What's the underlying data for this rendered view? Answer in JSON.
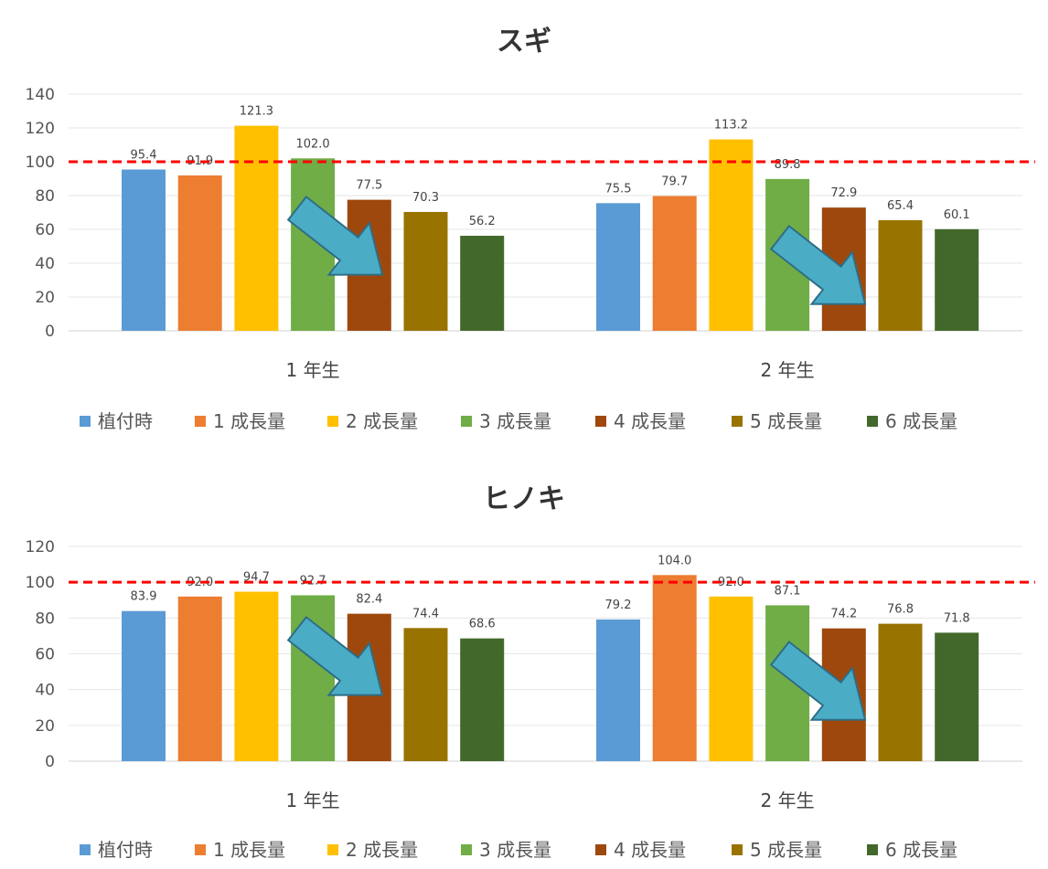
{
  "legend": [
    "植付時",
    "1 成長量",
    "2 成長量",
    "3 成長量",
    "4 成長量",
    "5 成長量",
    "6 成長量"
  ],
  "colors": [
    "#5B9BD5",
    "#ED7D31",
    "#FFC000",
    "#70AD47",
    "#9E480E",
    "#997300",
    "#43682B"
  ],
  "arrow_color": "#4BACC6",
  "reference_line_color": "#FF0000",
  "chart_data": [
    {
      "type": "bar",
      "title": "スギ",
      "categories": [
        "1 年生",
        "2 年生"
      ],
      "ylim": [
        0,
        140
      ],
      "yticks": [
        0,
        20,
        40,
        60,
        80,
        100,
        120,
        140
      ],
      "reference_line": 100,
      "grid": true,
      "legend_position": "bottom",
      "series": [
        {
          "name": "植付時",
          "values": [
            95.4,
            75.5
          ]
        },
        {
          "name": "1 成長量",
          "values": [
            91.9,
            79.7
          ]
        },
        {
          "name": "2 成長量",
          "values": [
            121.3,
            113.2
          ]
        },
        {
          "name": "3 成長量",
          "values": [
            102.0,
            89.8
          ]
        },
        {
          "name": "4 成長量",
          "values": [
            77.5,
            72.9
          ]
        },
        {
          "name": "5 成長量",
          "values": [
            70.3,
            65.4
          ]
        },
        {
          "name": "6 成長量",
          "values": [
            56.2,
            60.1
          ]
        }
      ],
      "value_labels": [
        [
          "95.4",
          "91.9",
          "121.3",
          "102.0",
          "77.5",
          "70.3",
          "56.2"
        ],
        [
          "75.5",
          "79.7",
          "113.2",
          "89.8",
          "72.9",
          "65.4",
          "60.1"
        ]
      ]
    },
    {
      "type": "bar",
      "title": "ヒノキ",
      "categories": [
        "1 年生",
        "2 年生"
      ],
      "ylim": [
        0,
        120
      ],
      "yticks": [
        0,
        20,
        40,
        60,
        80,
        100,
        120
      ],
      "reference_line": 100,
      "grid": true,
      "legend_position": "bottom",
      "series": [
        {
          "name": "植付時",
          "values": [
            83.9,
            79.2
          ]
        },
        {
          "name": "1 成長量",
          "values": [
            92.0,
            104.0
          ]
        },
        {
          "name": "2 成長量",
          "values": [
            94.7,
            92.0
          ]
        },
        {
          "name": "3 成長量",
          "values": [
            92.7,
            87.1
          ]
        },
        {
          "name": "4 成長量",
          "values": [
            82.4,
            74.2
          ]
        },
        {
          "name": "5 成長量",
          "values": [
            74.4,
            76.8
          ]
        },
        {
          "name": "6 成長量",
          "values": [
            68.6,
            71.8
          ]
        }
      ],
      "value_labels": [
        [
          "83.9",
          "92.0",
          "94.7",
          "92.7",
          "82.4",
          "74.4",
          "68.6"
        ],
        [
          "79.2",
          "104.0",
          "92.0",
          "87.1",
          "74.2",
          "76.8",
          "71.8"
        ]
      ]
    }
  ]
}
